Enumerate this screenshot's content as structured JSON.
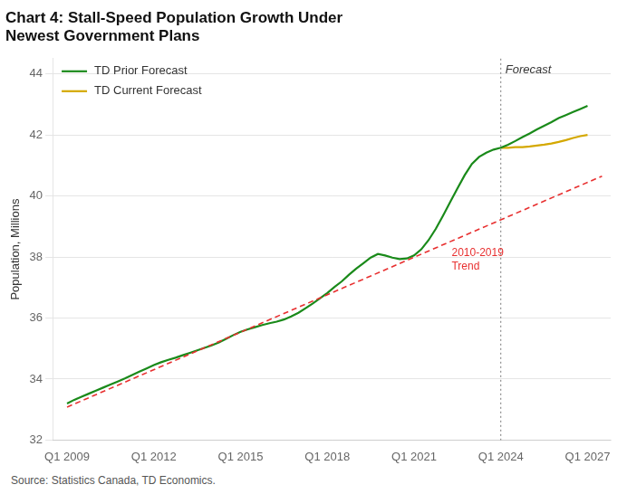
{
  "chart_data": {
    "type": "line",
    "title": "Chart 4: Stall-Speed Population Growth Under\nNewest Government Plans",
    "y_label": "Population, Millions",
    "source": "Source: Statistics Canada, TD Economics.",
    "xlim": [
      2008.5,
      2027.8
    ],
    "xticks": [
      {
        "value": 2009.0,
        "label": "Q1 2009"
      },
      {
        "value": 2012.0,
        "label": "Q1 2012"
      },
      {
        "value": 2015.0,
        "label": "Q1 2015"
      },
      {
        "value": 2018.0,
        "label": "Q1 2018"
      },
      {
        "value": 2021.0,
        "label": "Q1 2021"
      },
      {
        "value": 2024.0,
        "label": "Q1 2024"
      },
      {
        "value": 2027.0,
        "label": "Q1 2027"
      }
    ],
    "ylim": [
      32,
      44.5
    ],
    "yticks": [
      32,
      34,
      36,
      38,
      40,
      42,
      44
    ],
    "grid": "y",
    "legend": "upper left",
    "vline": {
      "x": 2024.0,
      "label": "Forecast"
    },
    "annotations": [
      {
        "text": "2010-2019\nTrend",
        "x": 2022.3,
        "y": 38.3,
        "color": "#e83030"
      }
    ],
    "series": [
      {
        "color": "#e83030",
        "line_style": "dashed",
        "x": [
          2009.0,
          2027.5
        ],
        "values": [
          33.08,
          40.65
        ]
      },
      {
        "name": "TD Prior Forecast",
        "color": "#1a8a1a",
        "line_style": "solid",
        "x": [
          2009.0,
          2009.25,
          2009.5,
          2009.75,
          2010.0,
          2010.25,
          2010.5,
          2010.75,
          2011.0,
          2011.25,
          2011.5,
          2011.75,
          2012.0,
          2012.25,
          2012.5,
          2012.75,
          2013.0,
          2013.25,
          2013.5,
          2013.75,
          2014.0,
          2014.25,
          2014.5,
          2014.75,
          2015.0,
          2015.25,
          2015.5,
          2015.75,
          2016.0,
          2016.25,
          2016.5,
          2016.75,
          2017.0,
          2017.25,
          2017.5,
          2017.75,
          2018.0,
          2018.25,
          2018.5,
          2018.75,
          2019.0,
          2019.25,
          2019.5,
          2019.75,
          2020.0,
          2020.25,
          2020.5,
          2020.75,
          2021.0,
          2021.25,
          2021.5,
          2021.75,
          2022.0,
          2022.25,
          2022.5,
          2022.75,
          2023.0,
          2023.25,
          2023.5,
          2023.75,
          2024.0,
          2024.25,
          2024.5,
          2024.75,
          2025.0,
          2025.25,
          2025.5,
          2025.75,
          2026.0,
          2026.25,
          2026.5,
          2026.75,
          2027.0
        ],
        "values": [
          33.2,
          33.32,
          33.42,
          33.52,
          33.62,
          33.72,
          33.82,
          33.92,
          34.02,
          34.13,
          34.24,
          34.35,
          34.46,
          34.55,
          34.63,
          34.7,
          34.78,
          34.86,
          34.94,
          35.02,
          35.1,
          35.2,
          35.32,
          35.44,
          35.55,
          35.63,
          35.7,
          35.77,
          35.83,
          35.88,
          35.95,
          36.05,
          36.17,
          36.32,
          36.48,
          36.65,
          36.82,
          37.02,
          37.2,
          37.42,
          37.62,
          37.8,
          37.98,
          38.1,
          38.05,
          37.98,
          37.93,
          37.95,
          38.05,
          38.25,
          38.55,
          38.92,
          39.35,
          39.8,
          40.25,
          40.68,
          41.05,
          41.28,
          41.42,
          41.52,
          41.58,
          41.68,
          41.8,
          41.93,
          42.05,
          42.18,
          42.3,
          42.42,
          42.55,
          42.65,
          42.75,
          42.85,
          42.95
        ]
      },
      {
        "name": "TD Current Forecast",
        "color": "#d4a800",
        "line_style": "solid",
        "x": [
          2024.0,
          2024.25,
          2024.5,
          2024.75,
          2025.0,
          2025.25,
          2025.5,
          2025.75,
          2026.0,
          2026.25,
          2026.5,
          2026.75,
          2027.0
        ],
        "values": [
          41.58,
          41.58,
          41.6,
          41.6,
          41.62,
          41.65,
          41.68,
          41.72,
          41.77,
          41.83,
          41.9,
          41.96,
          42.0
        ]
      }
    ]
  }
}
